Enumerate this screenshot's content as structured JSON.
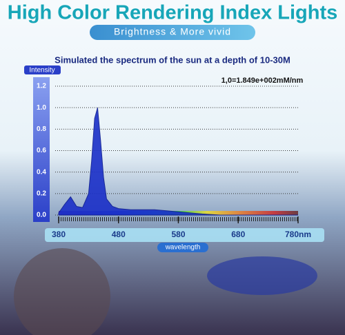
{
  "chart_data": {
    "type": "area",
    "title": "High Color Rendering Index Lights",
    "subtitle": "Brightness & More vivid",
    "chart_title": "Simulated the spectrum of the sun at a depth of 10-30M",
    "y_label": "Intensity",
    "x_label": "wavelength",
    "annotation": "1,0=1.849e+002mM/nm",
    "color": "#1a2fc8",
    "grid": true,
    "x": [
      380,
      390,
      400,
      410,
      420,
      430,
      435,
      440,
      445,
      450,
      455,
      460,
      470,
      480,
      500,
      520,
      540,
      560,
      580,
      600,
      620,
      650,
      700,
      750,
      780
    ],
    "values": [
      0.02,
      0.1,
      0.17,
      0.08,
      0.07,
      0.2,
      0.5,
      0.9,
      1.0,
      0.7,
      0.35,
      0.15,
      0.08,
      0.06,
      0.05,
      0.05,
      0.05,
      0.04,
      0.03,
      0.02,
      0.01,
      0,
      0,
      0,
      0
    ],
    "xlim": [
      380,
      780
    ],
    "xticks": [
      380,
      480,
      580,
      680,
      {
        "value": 780,
        "label": "780nm"
      }
    ],
    "ylim": [
      0,
      1.2
    ],
    "yticks": [
      {
        "value": 0,
        "label": "0.0"
      },
      {
        "value": 0.2,
        "label": "0.2"
      },
      {
        "value": 0.4,
        "label": "0.4"
      },
      {
        "value": 0.6,
        "label": "0.6"
      },
      {
        "value": 0.8,
        "label": "0.8"
      },
      {
        "value": 1.0,
        "label": "1.0"
      },
      {
        "value": 1.2,
        "label": "1.2"
      }
    ]
  }
}
